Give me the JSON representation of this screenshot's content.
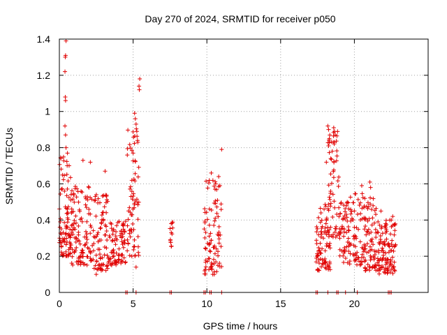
{
  "chart_data": {
    "type": "scatter",
    "title": "Day 270 of 2024, SRMTID for receiver p050",
    "xlabel": "GPS time / hours",
    "ylabel": "SRMTID / TECUs",
    "xlim": [
      0,
      25
    ],
    "ylim": [
      0,
      1.4
    ],
    "xticks": [
      0,
      5,
      10,
      15,
      20
    ],
    "xtick_labels": [
      "0",
      "5",
      "10",
      "15",
      "20"
    ],
    "yticks": [
      0,
      0.2,
      0.4,
      0.6,
      0.8,
      1,
      1.2,
      1.4
    ],
    "ytick_labels": [
      "0",
      "0.2",
      "0.4",
      "0.6",
      "0.8",
      "1",
      "1.2",
      "1.4"
    ],
    "grid": true,
    "marker": "plus",
    "color": "#e00000",
    "series": [
      {
        "name": "p050",
        "clusters": [
          {
            "x_range": [
              0.0,
              0.8
            ],
            "y_range": [
              0.2,
              0.75
            ],
            "count": 90
          },
          {
            "x_range": [
              0.8,
              2.2
            ],
            "y_range": [
              0.15,
              0.6
            ],
            "count": 110
          },
          {
            "x_range": [
              2.2,
              3.3
            ],
            "y_range": [
              0.12,
              0.55
            ],
            "count": 80
          },
          {
            "x_range": [
              3.3,
              4.5
            ],
            "y_range": [
              0.15,
              0.4
            ],
            "count": 80
          },
          {
            "x_range": [
              4.6,
              5.4
            ],
            "y_range": [
              0.2,
              0.95
            ],
            "count": 70
          },
          {
            "x_range": [
              7.5,
              7.7
            ],
            "y_range": [
              0.25,
              0.42
            ],
            "count": 12
          },
          {
            "x_range": [
              9.8,
              11.0
            ],
            "y_range": [
              0.1,
              0.62
            ],
            "count": 90
          },
          {
            "x_range": [
              17.4,
              18.4
            ],
            "y_range": [
              0.12,
              0.5
            ],
            "count": 80
          },
          {
            "x_range": [
              18.2,
              19.0
            ],
            "y_range": [
              0.3,
              0.9
            ],
            "count": 60
          },
          {
            "x_range": [
              19.0,
              20.5
            ],
            "y_range": [
              0.15,
              0.55
            ],
            "count": 100
          },
          {
            "x_range": [
              20.5,
              21.5
            ],
            "y_range": [
              0.12,
              0.55
            ],
            "count": 90
          },
          {
            "x_range": [
              21.5,
              22.8
            ],
            "y_range": [
              0.1,
              0.4
            ],
            "count": 110
          }
        ],
        "peaks": [
          {
            "x": 0.45,
            "y": 1.39
          },
          {
            "x": 0.42,
            "y": 1.31
          },
          {
            "x": 0.4,
            "y": 1.3
          },
          {
            "x": 0.38,
            "y": 1.22
          },
          {
            "x": 0.4,
            "y": 1.08
          },
          {
            "x": 0.42,
            "y": 1.06
          },
          {
            "x": 0.38,
            "y": 0.92
          },
          {
            "x": 0.42,
            "y": 0.87
          },
          {
            "x": 0.45,
            "y": 0.8
          },
          {
            "x": 0.55,
            "y": 0.77
          },
          {
            "x": 0.1,
            "y": 0.74
          },
          {
            "x": 1.6,
            "y": 0.73
          },
          {
            "x": 2.1,
            "y": 0.72
          },
          {
            "x": 3.1,
            "y": 0.67
          },
          {
            "x": 5.1,
            "y": 0.99
          },
          {
            "x": 5.15,
            "y": 0.96
          },
          {
            "x": 5.2,
            "y": 0.93
          },
          {
            "x": 5.25,
            "y": 0.89
          },
          {
            "x": 5.3,
            "y": 0.84
          },
          {
            "x": 5.45,
            "y": 1.18
          },
          {
            "x": 5.4,
            "y": 1.14
          },
          {
            "x": 5.42,
            "y": 1.12
          },
          {
            "x": 5.0,
            "y": 0.77
          },
          {
            "x": 5.2,
            "y": 0.14
          },
          {
            "x": 11.0,
            "y": 0.79
          },
          {
            "x": 10.3,
            "y": 0.66
          },
          {
            "x": 10.6,
            "y": 0.6
          },
          {
            "x": 10.8,
            "y": 0.64
          },
          {
            "x": 10.4,
            "y": 0.1
          },
          {
            "x": 2.5,
            "y": 0.1
          },
          {
            "x": 18.2,
            "y": 0.92
          },
          {
            "x": 18.25,
            "y": 0.9
          },
          {
            "x": 18.3,
            "y": 0.85
          },
          {
            "x": 18.25,
            "y": 0.81
          },
          {
            "x": 18.6,
            "y": 0.91
          },
          {
            "x": 18.65,
            "y": 0.89
          },
          {
            "x": 18.7,
            "y": 0.87
          },
          {
            "x": 18.6,
            "y": 0.83
          },
          {
            "x": 18.5,
            "y": 0.78
          },
          {
            "x": 18.4,
            "y": 0.74
          },
          {
            "x": 18.1,
            "y": 0.72
          },
          {
            "x": 20.5,
            "y": 0.59
          },
          {
            "x": 21.05,
            "y": 0.61
          },
          {
            "x": 21.1,
            "y": 0.58
          },
          {
            "x": 21.8,
            "y": 0.45
          },
          {
            "x": 22.6,
            "y": 0.42
          },
          {
            "x": 22.5,
            "y": 0.4
          }
        ],
        "zero_markers": [
          4.5,
          4.6,
          5.2,
          7.5,
          7.6,
          9.8,
          9.9,
          10.2,
          10.3,
          11.0,
          17.4,
          17.5,
          18.2,
          18.8,
          18.9,
          19.4,
          20.2,
          22.3,
          22.4,
          22.5
        ]
      }
    ]
  }
}
